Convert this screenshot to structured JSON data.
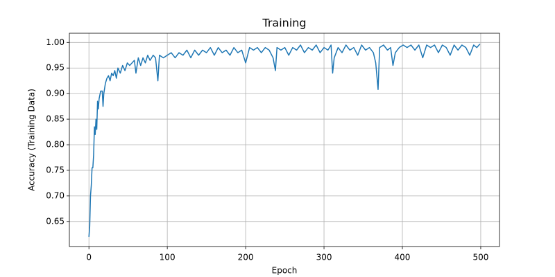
{
  "chart_data": {
    "type": "line",
    "title": "Training",
    "x_label": "Epoch",
    "y_label": "Accuracy (Training Data)",
    "x": [
      0,
      1,
      2,
      3,
      4,
      5,
      6,
      7,
      8,
      9,
      10,
      11,
      12,
      13,
      15,
      17,
      18,
      19,
      21,
      23,
      25,
      27,
      29,
      31,
      33,
      35,
      37,
      40,
      43,
      46,
      49,
      52,
      55,
      58,
      60,
      63,
      66,
      69,
      72,
      75,
      78,
      82,
      85,
      88,
      90,
      95,
      100,
      105,
      110,
      115,
      120,
      125,
      130,
      135,
      140,
      145,
      150,
      155,
      160,
      165,
      170,
      175,
      180,
      185,
      190,
      195,
      200,
      205,
      210,
      215,
      220,
      225,
      230,
      235,
      238,
      240,
      245,
      250,
      255,
      260,
      265,
      270,
      275,
      280,
      285,
      290,
      295,
      300,
      305,
      309,
      311,
      313,
      318,
      323,
      328,
      333,
      338,
      343,
      348,
      353,
      358,
      363,
      366,
      369,
      371,
      376,
      381,
      385,
      388,
      391,
      396,
      401,
      406,
      411,
      416,
      421,
      426,
      431,
      436,
      441,
      446,
      451,
      456,
      461,
      466,
      471,
      476,
      481,
      486,
      491,
      495,
      499
    ],
    "series": [
      {
        "name": "Training",
        "color": "#1f77b4",
        "values": [
          0.62,
          0.64,
          0.7,
          0.72,
          0.755,
          0.755,
          0.78,
          0.835,
          0.82,
          0.85,
          0.83,
          0.885,
          0.87,
          0.89,
          0.905,
          0.905,
          0.875,
          0.9,
          0.92,
          0.93,
          0.935,
          0.925,
          0.94,
          0.935,
          0.945,
          0.93,
          0.95,
          0.94,
          0.955,
          0.945,
          0.96,
          0.955,
          0.96,
          0.965,
          0.94,
          0.97,
          0.955,
          0.97,
          0.96,
          0.975,
          0.965,
          0.975,
          0.97,
          0.925,
          0.975,
          0.97,
          0.975,
          0.98,
          0.97,
          0.98,
          0.975,
          0.985,
          0.97,
          0.985,
          0.975,
          0.985,
          0.98,
          0.99,
          0.975,
          0.99,
          0.98,
          0.985,
          0.975,
          0.99,
          0.98,
          0.985,
          0.96,
          0.99,
          0.985,
          0.99,
          0.98,
          0.99,
          0.985,
          0.97,
          0.945,
          0.99,
          0.985,
          0.99,
          0.975,
          0.99,
          0.985,
          0.995,
          0.98,
          0.99,
          0.985,
          0.995,
          0.98,
          0.99,
          0.985,
          0.995,
          0.94,
          0.97,
          0.99,
          0.98,
          0.995,
          0.985,
          0.99,
          0.975,
          0.995,
          0.985,
          0.99,
          0.98,
          0.96,
          0.908,
          0.99,
          0.995,
          0.985,
          0.99,
          0.955,
          0.98,
          0.99,
          0.995,
          0.99,
          0.995,
          0.985,
          0.995,
          0.97,
          0.995,
          0.99,
          0.995,
          0.98,
          0.995,
          0.99,
          0.975,
          0.995,
          0.985,
          0.995,
          0.99,
          0.975,
          0.995,
          0.99,
          0.997
        ]
      }
    ],
    "xlim": [
      -24.95,
      523.95
    ],
    "xticks": [
      0,
      100,
      200,
      300,
      400,
      500
    ],
    "ylim": [
      0.601,
      1.018
    ],
    "yticks": [
      0.65,
      {
        "value": 0.7,
        "label": "0.70"
      },
      0.75,
      {
        "value": 0.8,
        "label": "0.80"
      },
      0.85,
      {
        "value": 0.9,
        "label": "0.90"
      },
      0.95,
      {
        "value": 1,
        "label": "1.00"
      }
    ],
    "grid": true
  }
}
